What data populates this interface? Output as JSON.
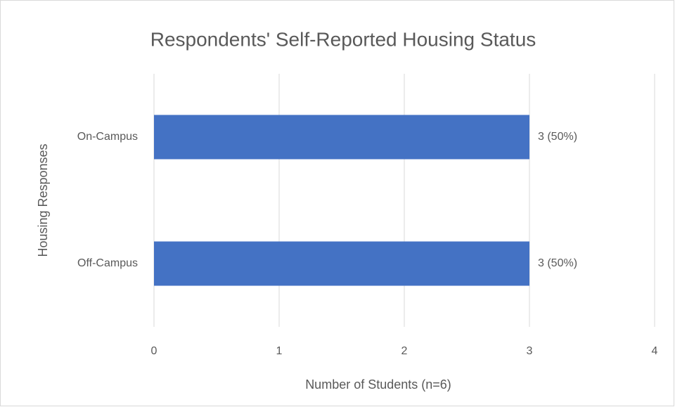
{
  "chart_data": {
    "type": "bar",
    "orientation": "horizontal",
    "title": "Respondents' Self-Reported Housing Status",
    "xlabel": "Number of Students (n=6)",
    "ylabel": "Housing Responses",
    "categories": [
      "On-Campus",
      "Off-Campus"
    ],
    "values": [
      3,
      3
    ],
    "value_labels": [
      "3 (50%)",
      "3 (50%)"
    ],
    "color": "#4472c4",
    "xlim": [
      0,
      4
    ],
    "xticks": [
      0,
      1,
      2,
      3,
      4
    ],
    "grid": true
  }
}
